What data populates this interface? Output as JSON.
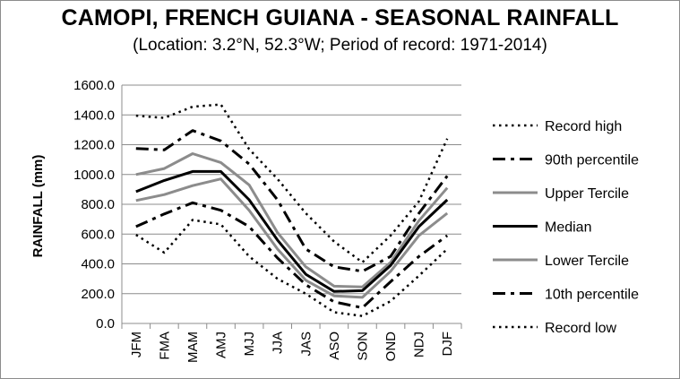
{
  "chart_data": {
    "type": "line",
    "title": "CAMOPI, FRENCH GUIANA - SEASONAL RAINFALL",
    "subtitle": "(Location: 3.2°N, 52.3°W; Period of record: 1971-2014)",
    "ylabel": "RAINFALL (mm)",
    "xlabel": "",
    "ylim": [
      0,
      1600
    ],
    "yticks": [
      "1600.0",
      "1400.0",
      "1200.0",
      "1000.0",
      "800.0",
      "600.0",
      "400.0",
      "200.0",
      "0.0"
    ],
    "categories": [
      "JFM",
      "FMA",
      "MAM",
      "AMJ",
      "MJJ",
      "JJA",
      "JAS",
      "ASO",
      "SON",
      "OND",
      "NDJ",
      "DJF"
    ],
    "grid": "horizontal",
    "legend_position": "right",
    "series": [
      {
        "name": "Record high",
        "style": "dotted",
        "color": "#000000",
        "values": [
          1395,
          1380,
          1455,
          1470,
          1170,
          970,
          740,
          550,
          410,
          590,
          820,
          1240
        ]
      },
      {
        "name": "90th percentile",
        "style": "dashdot",
        "color": "#000000",
        "values": [
          1175,
          1165,
          1295,
          1225,
          1070,
          830,
          500,
          380,
          350,
          450,
          740,
          990
        ]
      },
      {
        "name": "Upper Tercile",
        "style": "solid",
        "color": "#8c8c8c",
        "values": [
          1000,
          1040,
          1140,
          1080,
          930,
          610,
          380,
          250,
          245,
          410,
          690,
          910
        ]
      },
      {
        "name": "Median",
        "style": "solid",
        "color": "#000000",
        "values": [
          885,
          960,
          1020,
          1020,
          830,
          560,
          330,
          215,
          220,
          390,
          650,
          830
        ]
      },
      {
        "name": "Lower Tercile",
        "style": "solid",
        "color": "#8c8c8c",
        "values": [
          825,
          865,
          925,
          970,
          760,
          500,
          290,
          185,
          175,
          350,
          590,
          740
        ]
      },
      {
        "name": "10th percentile",
        "style": "dashdot",
        "color": "#000000",
        "values": [
          650,
          735,
          810,
          760,
          650,
          440,
          260,
          145,
          105,
          280,
          450,
          590
        ]
      },
      {
        "name": "Record low",
        "style": "dotted",
        "color": "#000000",
        "values": [
          595,
          475,
          695,
          665,
          450,
          300,
          200,
          75,
          50,
          150,
          320,
          500
        ]
      }
    ]
  }
}
